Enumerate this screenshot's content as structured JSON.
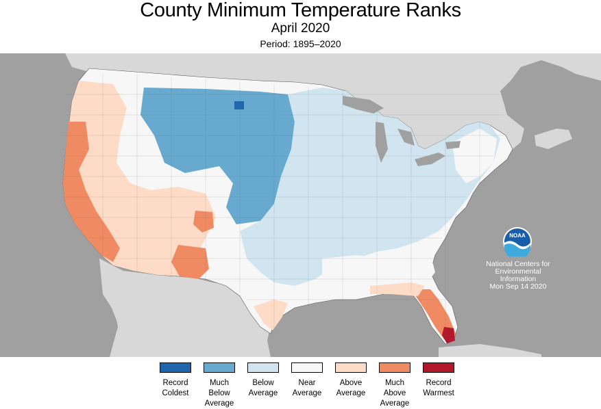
{
  "header": {
    "title": "County Minimum Temperature Ranks",
    "subtitle": "April 2020",
    "period": "Period: 1895–2020"
  },
  "colors": {
    "ocean": "#a0a0a0",
    "land_other": "#d8d8d8",
    "record_coldest": "#2166ac",
    "much_below": "#67a9cf",
    "below": "#d1e5f0",
    "near": "#f7f7f7",
    "above": "#fddbc7",
    "much_above": "#ef8a62",
    "record_warmest": "#b2182b"
  },
  "legend": [
    {
      "label": "Record\nColdest",
      "color": "#2166ac"
    },
    {
      "label": "Much\nBelow\nAverage",
      "color": "#67a9cf"
    },
    {
      "label": "Below\nAverage",
      "color": "#d1e5f0"
    },
    {
      "label": "Near\nAverage",
      "color": "#f7f7f7"
    },
    {
      "label": "Above\nAverage",
      "color": "#fddbc7"
    },
    {
      "label": "Much\nAbove\nAverage",
      "color": "#ef8a62"
    },
    {
      "label": "Record\nWarmest",
      "color": "#b2182b"
    }
  ],
  "branding": {
    "logo_text": "NOAA",
    "org_line1": "National Centers for",
    "org_line2": "Environmental",
    "org_line3": "Information",
    "date": "Mon Sep 14 2020"
  }
}
